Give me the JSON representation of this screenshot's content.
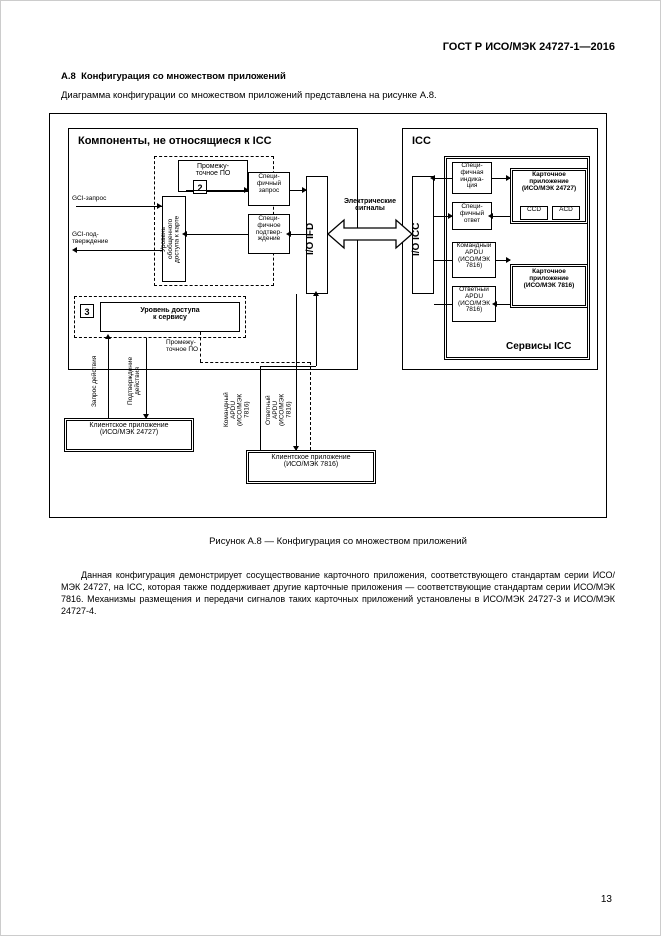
{
  "header": "ГОСТ Р ИСО/МЭК 24727-1—2016",
  "section_num": "А.8",
  "section_title": "Конфигурация со множеством приложений",
  "intro": "Диаграмма конфигурации со множеством приложений представлена на рисунке А.8.",
  "caption": "Рисунок А.8 — Конфигурация со множеством приложений",
  "paragraph": "Данная конфигурация демонстрирует сосуществование карточного приложения, соответствующего стандартам серии ИСО/МЭК 24727, на ICC, которая также поддерживает другие карточные приложения — соответствующие стандартам серии ИСО/МЭК 7816. Механизмы размещения и передачи сигналов таких карточных приложений установлены в ИСО/МЭК 24727-3 и ИСО/МЭК 24727-4.",
  "page_number": "13",
  "diagram": {
    "group_left_title": "Компоненты, не относящиеся к ICC",
    "group_right_title": "ICC",
    "box_prom": "Промежу-\nточное ПО",
    "box_access_service": "Уровень доступа\nк сервису",
    "box_access_card": "Уровень\nобобщенного\nдоступа к карте",
    "io_ifd": "I/O IFD",
    "io_icc": "I/O ICC",
    "elec": "Электрические\nсигналы",
    "card_app1": "Карточное\nприложение\n(ИСО/МЭК 24727)",
    "card_app2": "Карточное\nприложение\n(ИСО/МЭК 7816)",
    "ccd": "CCD",
    "acd": "ACD",
    "icc_services": "Сервисы ICC",
    "client_app1": "Клиентское приложение\n(ИСО/МЭК 24727)",
    "client_app2": "Клиентское приложение\n(ИСО/МЭК 7816)",
    "gci_req": "GCI-запрос",
    "gci_conf": "GCI-под-\nтверждение",
    "spec_req": "Специ-\nфичный\nзапрос",
    "spec_conf": "Специ-\nфичное\nподтвер-\nждение",
    "spec_ind": "Специ-\nфичная\nиндика-\nция",
    "spec_ans": "Специ-\nфичный\nответ",
    "cmd_apdu": "Командный\nAPDU\n(ИСО/МЭК\n7816)",
    "ans_apdu": "Ответный\nAPDU\n(ИСО/МЭК\n7816)",
    "prom2": "Промежу-\nточное ПО",
    "req_action": "Запрос действия",
    "conf_action": "Подтверждение\nдействия",
    "cmd_apdu2": "Командный\nAPDU\n(ИСО/МЭК\n7816)",
    "ans_apdu2": "Ответный\nAPDU\n(ИСО/МЭК\n7816)",
    "num2": "2",
    "num3": "3"
  }
}
